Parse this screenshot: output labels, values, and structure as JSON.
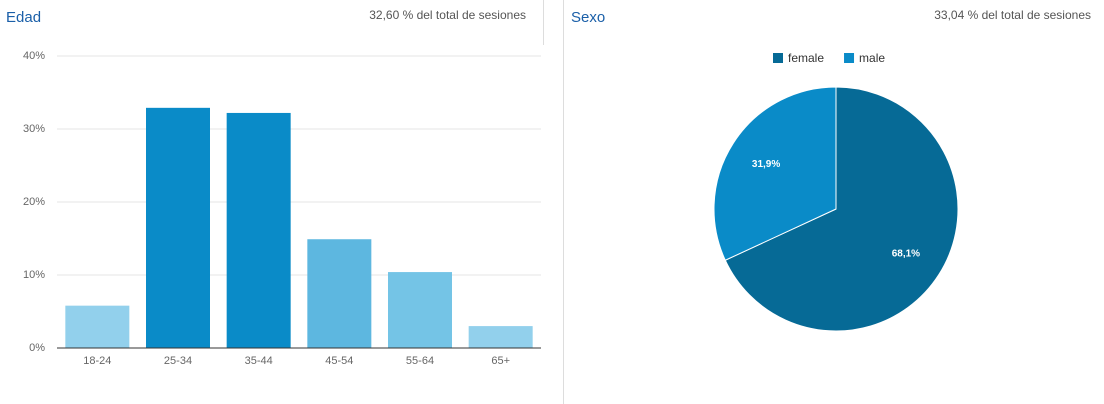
{
  "chart_data": [
    {
      "type": "bar",
      "title": "Edad",
      "subtitle": "32,60 % del total de sesiones",
      "categories": [
        "18-24",
        "25-34",
        "35-44",
        "45-54",
        "55-64",
        "65+"
      ],
      "values": [
        5.8,
        32.9,
        32.2,
        14.9,
        10.4,
        3.0
      ],
      "colors": [
        "#92d0ec",
        "#0a8bc8",
        "#0a8bc8",
        "#5db7e0",
        "#74c4e6",
        "#92d0ec"
      ],
      "ylim": [
        0,
        40
      ],
      "yticks": [
        {
          "value": 0,
          "label": "0%"
        },
        {
          "value": 10,
          "label": "10%"
        },
        {
          "value": 20,
          "label": "20%"
        },
        {
          "value": 30,
          "label": "30%"
        },
        {
          "value": 40,
          "label": "40%"
        }
      ],
      "grid": true
    },
    {
      "type": "pie",
      "title": "Sexo",
      "subtitle": "33,04 % del total de sesiones",
      "categories": [
        "female",
        "male"
      ],
      "values": [
        68.1,
        31.9
      ],
      "value_labels": [
        "68,1%",
        "31,9%"
      ],
      "colors": [
        "#066a96",
        "#0a8bc8"
      ],
      "legend": "top"
    }
  ]
}
